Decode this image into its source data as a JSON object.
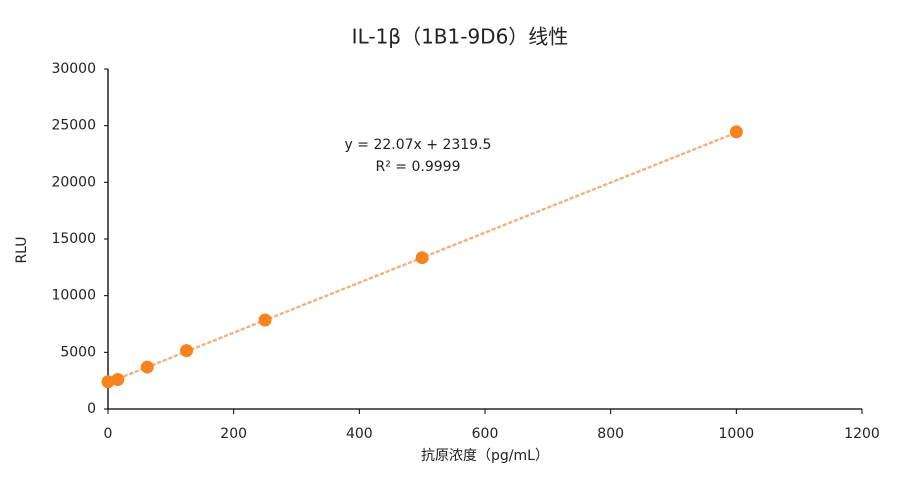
{
  "chart_data": {
    "type": "scatter",
    "title": "IL-1β（1B1-9D6）线性",
    "x_label": "抗原浓度（pg/mL）",
    "y_label": "RLU",
    "series": [
      {
        "name": "RLU",
        "color": "#f5841f",
        "x": [
          0,
          15.6,
          62.5,
          125,
          250,
          500,
          1000
        ],
        "values": [
          2400,
          2600,
          3700,
          5150,
          7850,
          13350,
          24450
        ]
      }
    ],
    "trendline": {
      "slope": 22.07,
      "intercept": 2319.5,
      "color": "#f4b183",
      "equation": "y = 22.07x + 2319.5",
      "r_squared": "R² = 0.9999"
    },
    "xlim": [
      0,
      1200
    ],
    "xticks": [
      0,
      200,
      400,
      600,
      800,
      1000,
      1200
    ],
    "ylim": [
      0,
      30000
    ],
    "yticks": [
      0,
      5000,
      10000,
      15000,
      20000,
      25000,
      30000
    ],
    "grid": false
  }
}
